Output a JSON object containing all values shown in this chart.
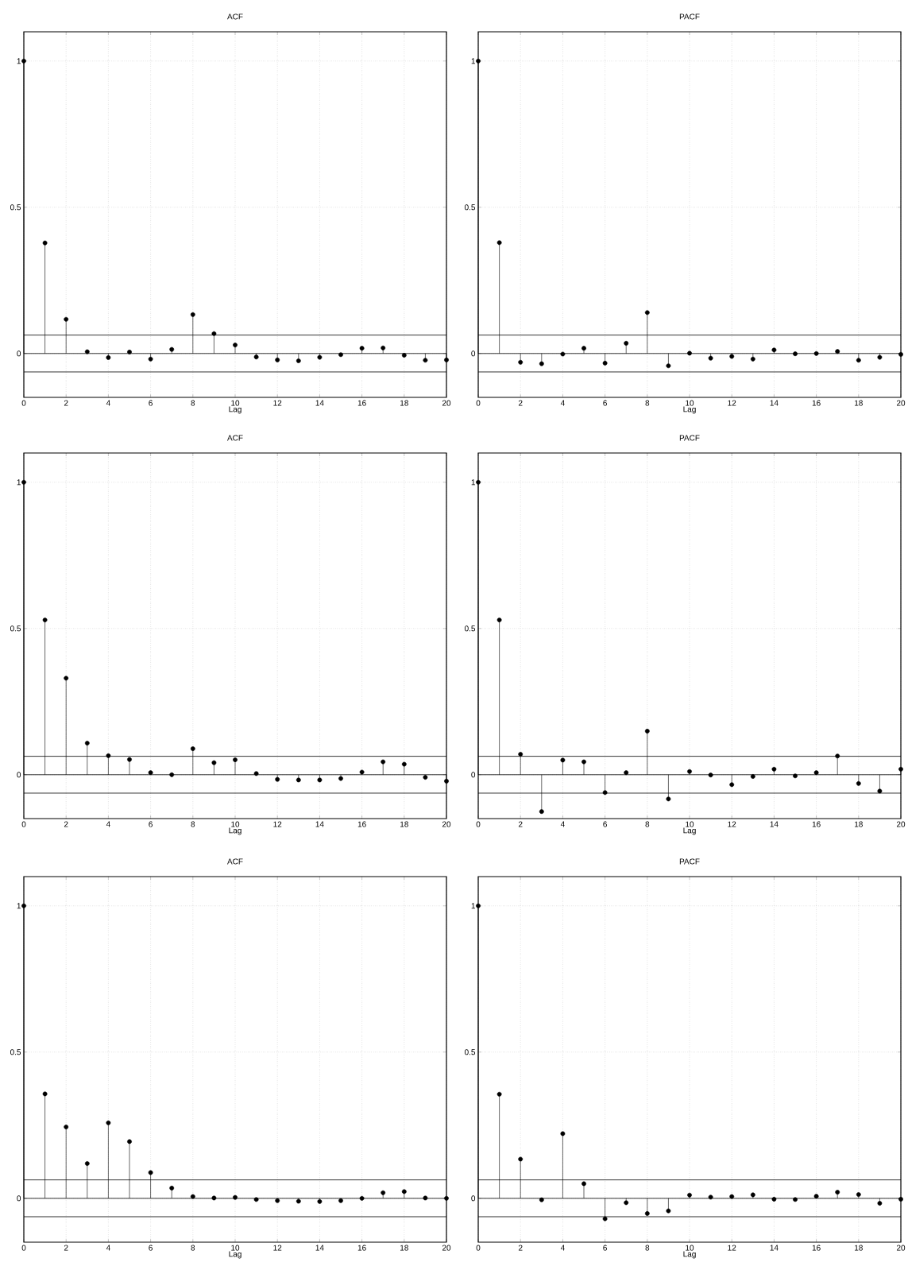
{
  "chart_data": [
    {
      "type": "lollipop",
      "title": "ACF",
      "xlabel": "Lag",
      "x": [
        0,
        1,
        2,
        3,
        4,
        5,
        6,
        7,
        8,
        9,
        10,
        11,
        12,
        13,
        14,
        15,
        16,
        17,
        18,
        19,
        20
      ],
      "values": [
        1,
        0.378,
        0.117,
        0.006,
        -0.014,
        0.005,
        -0.019,
        0.014,
        0.133,
        0.068,
        0.029,
        -0.012,
        -0.022,
        -0.025,
        -0.013,
        -0.004,
        0.018,
        0.019,
        -0.006,
        -0.023,
        -0.022
      ],
      "color": "#000000",
      "marker": "circle",
      "grid": true,
      "xlim": [
        0,
        20
      ],
      "xticks": [
        0,
        2,
        4,
        6,
        8,
        10,
        12,
        14,
        16,
        18,
        20
      ],
      "ylim": [
        -0.15,
        1.1
      ],
      "yticks": [
        0,
        0.5,
        1
      ],
      "ref_lines": [
        {
          "axis": "y",
          "value": 0.063
        },
        {
          "axis": "y",
          "value": 0
        },
        {
          "axis": "y",
          "value": -0.063
        }
      ]
    },
    {
      "type": "lollipop",
      "title": "PACF",
      "xlabel": "Lag",
      "x": [
        0,
        1,
        2,
        3,
        4,
        5,
        6,
        7,
        8,
        9,
        10,
        11,
        12,
        13,
        14,
        15,
        16,
        17,
        18,
        19,
        20
      ],
      "values": [
        1,
        0.379,
        -0.03,
        -0.035,
        -0.002,
        0.018,
        -0.033,
        0.035,
        0.14,
        -0.042,
        0.001,
        -0.016,
        -0.01,
        -0.019,
        0.012,
        -0.001,
        0,
        0.007,
        -0.023,
        -0.013,
        -0.003
      ],
      "color": "#000000",
      "marker": "circle",
      "grid": true,
      "xlim": [
        0,
        20
      ],
      "xticks": [
        0,
        2,
        4,
        6,
        8,
        10,
        12,
        14,
        16,
        18,
        20
      ],
      "ylim": [
        -0.15,
        1.1
      ],
      "yticks": [
        0,
        0.5,
        1
      ],
      "ref_lines": [
        {
          "axis": "y",
          "value": 0.063
        },
        {
          "axis": "y",
          "value": 0
        },
        {
          "axis": "y",
          "value": -0.063
        }
      ]
    },
    {
      "type": "lollipop",
      "title": "ACF",
      "xlabel": "Lag",
      "x": [
        0,
        1,
        2,
        3,
        4,
        5,
        6,
        7,
        8,
        9,
        10,
        11,
        12,
        13,
        14,
        15,
        16,
        17,
        18,
        19,
        20
      ],
      "values": [
        1,
        0.529,
        0.33,
        0.108,
        0.065,
        0.052,
        0.007,
        0,
        0.089,
        0.041,
        0.051,
        0.004,
        -0.016,
        -0.018,
        -0.018,
        -0.013,
        0.009,
        0.044,
        0.036,
        -0.009,
        -0.022
      ],
      "color": "#000000",
      "marker": "circle",
      "grid": true,
      "xlim": [
        0,
        20
      ],
      "xticks": [
        0,
        2,
        4,
        6,
        8,
        10,
        12,
        14,
        16,
        18,
        20
      ],
      "ylim": [
        -0.15,
        1.1
      ],
      "yticks": [
        0,
        0.5,
        1
      ],
      "ref_lines": [
        {
          "axis": "y",
          "value": 0.063
        },
        {
          "axis": "y",
          "value": 0
        },
        {
          "axis": "y",
          "value": -0.063
        }
      ]
    },
    {
      "type": "lollipop",
      "title": "PACF",
      "xlabel": "Lag",
      "x": [
        0,
        1,
        2,
        3,
        4,
        5,
        6,
        7,
        8,
        9,
        10,
        11,
        12,
        13,
        14,
        15,
        16,
        17,
        18,
        19,
        20
      ],
      "values": [
        1,
        0.529,
        0.07,
        -0.126,
        0.05,
        0.044,
        -0.061,
        0.007,
        0.149,
        -0.083,
        0.011,
        -0.001,
        -0.034,
        -0.006,
        0.019,
        -0.004,
        0.007,
        0.064,
        -0.03,
        -0.056,
        0.019
      ],
      "color": "#000000",
      "marker": "circle",
      "grid": true,
      "xlim": [
        0,
        20
      ],
      "xticks": [
        0,
        2,
        4,
        6,
        8,
        10,
        12,
        14,
        16,
        18,
        20
      ],
      "ylim": [
        -0.15,
        1.1
      ],
      "yticks": [
        0,
        0.5,
        1
      ],
      "ref_lines": [
        {
          "axis": "y",
          "value": 0.063
        },
        {
          "axis": "y",
          "value": 0
        },
        {
          "axis": "y",
          "value": -0.063
        }
      ]
    },
    {
      "type": "lollipop",
      "title": "ACF",
      "xlabel": "Lag",
      "x": [
        0,
        1,
        2,
        3,
        4,
        5,
        6,
        7,
        8,
        9,
        10,
        11,
        12,
        13,
        14,
        15,
        16,
        17,
        18,
        19,
        20
      ],
      "values": [
        1,
        0.357,
        0.244,
        0.119,
        0.258,
        0.194,
        0.088,
        0.035,
        0.006,
        0.001,
        0.003,
        -0.004,
        -0.008,
        -0.01,
        -0.011,
        -0.008,
        0,
        0.019,
        0.023,
        0.001,
        0
      ],
      "color": "#000000",
      "marker": "circle",
      "grid": true,
      "xlim": [
        0,
        20
      ],
      "xticks": [
        0,
        2,
        4,
        6,
        8,
        10,
        12,
        14,
        16,
        18,
        20
      ],
      "ylim": [
        -0.15,
        1.1
      ],
      "yticks": [
        0,
        0.5,
        1
      ],
      "ref_lines": [
        {
          "axis": "y",
          "value": 0.063
        },
        {
          "axis": "y",
          "value": 0
        },
        {
          "axis": "y",
          "value": -0.063
        }
      ]
    },
    {
      "type": "lollipop",
      "title": "PACF",
      "xlabel": "Lag",
      "x": [
        0,
        1,
        2,
        3,
        4,
        5,
        6,
        7,
        8,
        9,
        10,
        11,
        12,
        13,
        14,
        15,
        16,
        17,
        18,
        19,
        20
      ],
      "values": [
        1,
        0.356,
        0.134,
        -0.005,
        0.221,
        0.05,
        -0.07,
        -0.015,
        -0.052,
        -0.043,
        0.011,
        0.004,
        0.006,
        0.012,
        -0.003,
        -0.004,
        0.007,
        0.021,
        0.013,
        -0.017,
        -0.003
      ],
      "color": "#000000",
      "marker": "circle",
      "grid": true,
      "xlim": [
        0,
        20
      ],
      "xticks": [
        0,
        2,
        4,
        6,
        8,
        10,
        12,
        14,
        16,
        18,
        20
      ],
      "ylim": [
        -0.15,
        1.1
      ],
      "yticks": [
        0,
        0.5,
        1
      ],
      "ref_lines": [
        {
          "axis": "y",
          "value": 0.063
        },
        {
          "axis": "y",
          "value": 0
        },
        {
          "axis": "y",
          "value": -0.063
        }
      ]
    }
  ]
}
